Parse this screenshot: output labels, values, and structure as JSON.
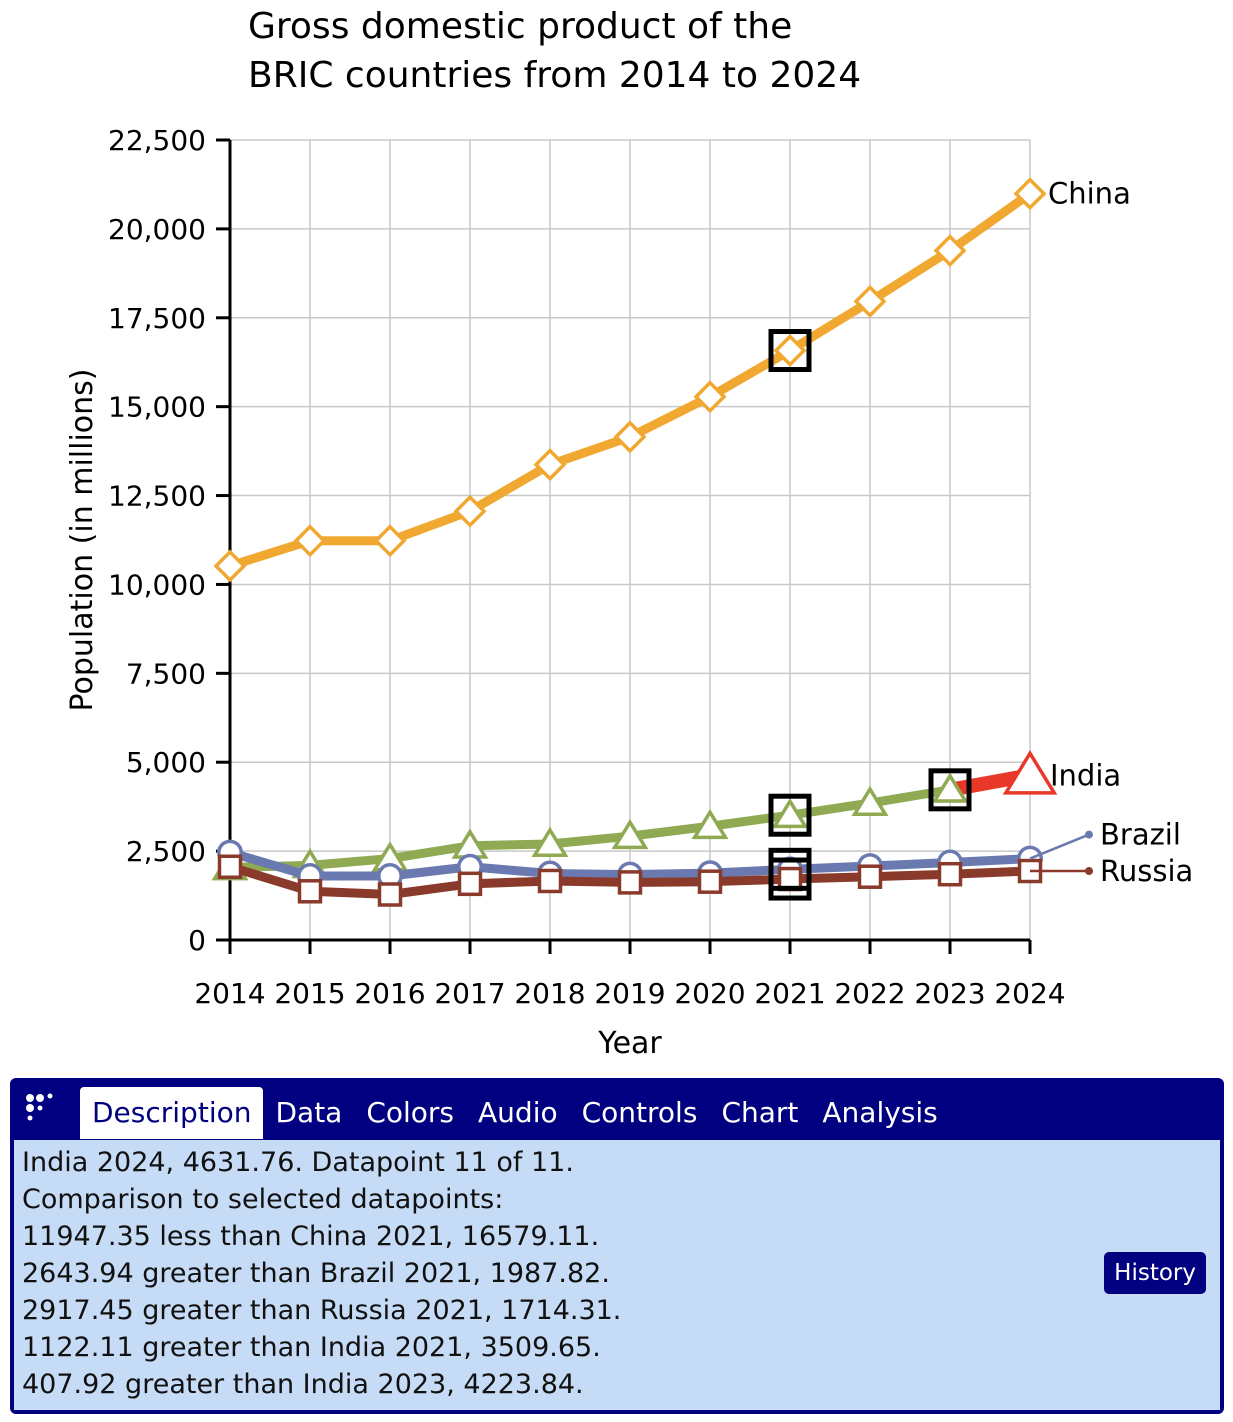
{
  "chart_data": {
    "type": "line",
    "title_lines": [
      "Gross domestic product of the",
      "BRIC countries from 2014 to 2024"
    ],
    "xlabel": "Year",
    "ylabel": "Population (in millions)",
    "categories": [
      "2014",
      "2015",
      "2016",
      "2017",
      "2018",
      "2019",
      "2020",
      "2021",
      "2022",
      "2023",
      "2024"
    ],
    "ylim": [
      0,
      22500
    ],
    "yticks": [
      0,
      2500,
      5000,
      7500,
      10000,
      12500,
      15000,
      17500,
      20000,
      22500
    ],
    "ytick_labels": [
      "0",
      "2,500",
      "5,000",
      "7,500",
      "10,000",
      "12,500",
      "15,000",
      "17,500",
      "20,000",
      "22,500"
    ],
    "grid": true,
    "series": [
      {
        "name": "China",
        "color": "#f0a830",
        "marker": "diamond",
        "values": [
          10520,
          11230,
          11230,
          12060,
          13370,
          14150,
          15280,
          16579.11,
          17960,
          19390,
          20990
        ]
      },
      {
        "name": "India",
        "color": "#8faa52",
        "marker": "triangle",
        "values": [
          2040,
          2100,
          2290,
          2650,
          2700,
          2920,
          3200,
          3509.65,
          3850,
          4223.84,
          4631.76
        ]
      },
      {
        "name": "Brazil",
        "color": "#6a7ab0",
        "marker": "circle",
        "values": [
          2460,
          1800,
          1800,
          2060,
          1870,
          1840,
          1880,
          1987.82,
          2080,
          2180,
          2290
        ]
      },
      {
        "name": "Russia",
        "color": "#8a3a2a",
        "marker": "square",
        "values": [
          2060,
          1370,
          1280,
          1580,
          1660,
          1620,
          1640,
          1714.31,
          1780,
          1850,
          1940
        ]
      }
    ],
    "selected_points": [
      {
        "series": "China",
        "x": "2021"
      },
      {
        "series": "Brazil",
        "x": "2021"
      },
      {
        "series": "Russia",
        "x": "2021"
      },
      {
        "series": "India",
        "x": "2021"
      },
      {
        "series": "India",
        "x": "2023"
      }
    ],
    "highlight": {
      "series": "India",
      "x": "2024",
      "color": "#e8382a"
    }
  },
  "panel": {
    "tabs": [
      "Description",
      "Data",
      "Colors",
      "Audio",
      "Controls",
      "Chart",
      "Analysis"
    ],
    "active_tab": "Description",
    "description_lines": [
      "India 2024, 4631.76. Datapoint 11 of 11.",
      "Comparison to selected datapoints:",
      "11947.35 less than China 2021, 16579.11.",
      "2643.94 greater than Brazil 2021, 1987.82.",
      "2917.45 greater than Russia 2021, 1714.31.",
      "1122.11 greater than India 2021, 3509.65.",
      "407.92 greater than India 2023, 4223.84."
    ],
    "history_label": "History"
  }
}
